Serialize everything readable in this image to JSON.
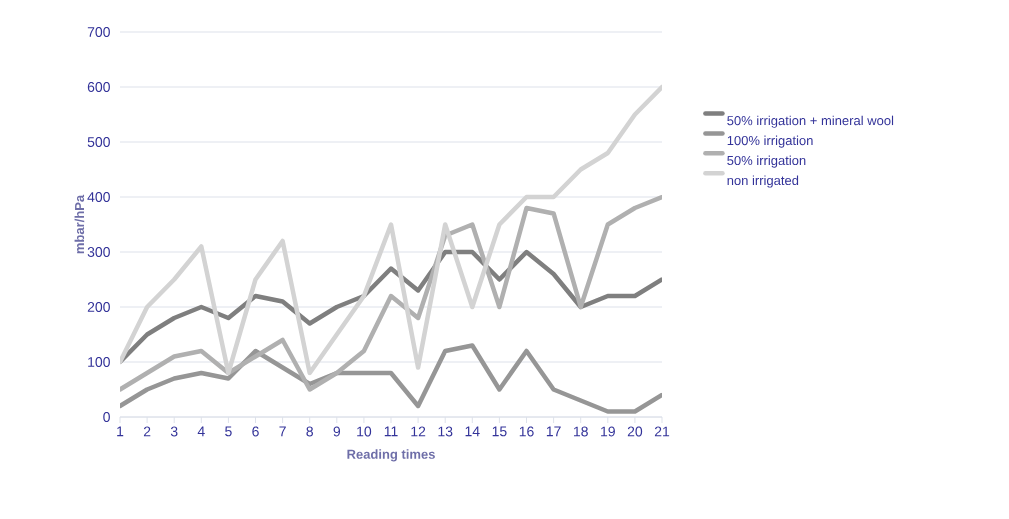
{
  "chart_data": {
    "type": "line",
    "xlabel": "Reading times",
    "ylabel": "mbar/hPa",
    "categories": [
      "1",
      "2",
      "3",
      "4",
      "5",
      "6",
      "7",
      "8",
      "9",
      "10",
      "11",
      "12",
      "13",
      "14",
      "15",
      "16",
      "17",
      "18",
      "19",
      "20",
      "21"
    ],
    "series": [
      {
        "name": "50% irrigation + mineral wool",
        "color": "#7f7f7f",
        "values": [
          100,
          150,
          180,
          200,
          180,
          220,
          210,
          170,
          200,
          220,
          270,
          230,
          300,
          300,
          250,
          300,
          260,
          200,
          220,
          220,
          250
        ]
      },
      {
        "name": "100% irrigation",
        "color": "#969696",
        "values": [
          20,
          50,
          70,
          80,
          70,
          120,
          90,
          60,
          80,
          80,
          80,
          20,
          120,
          130,
          50,
          120,
          50,
          30,
          10,
          10,
          40
        ]
      },
      {
        "name": "50% irrigation",
        "color": "#b0b0b0",
        "values": [
          50,
          80,
          110,
          120,
          80,
          110,
          140,
          50,
          80,
          120,
          220,
          180,
          330,
          350,
          200,
          380,
          370,
          200,
          350,
          380,
          400
        ]
      },
      {
        "name": "non irrigated",
        "color": "#d3d3d3",
        "values": [
          100,
          200,
          250,
          310,
          80,
          250,
          320,
          80,
          150,
          220,
          350,
          90,
          350,
          200,
          350,
          400,
          400,
          450,
          480,
          550,
          600
        ]
      }
    ],
    "ylim": [
      0,
      700
    ],
    "yticks": [
      0,
      100,
      200,
      300,
      400,
      500,
      600,
      700
    ],
    "grid": "y",
    "legend": "right",
    "marker": "none",
    "line_style": "solid"
  }
}
